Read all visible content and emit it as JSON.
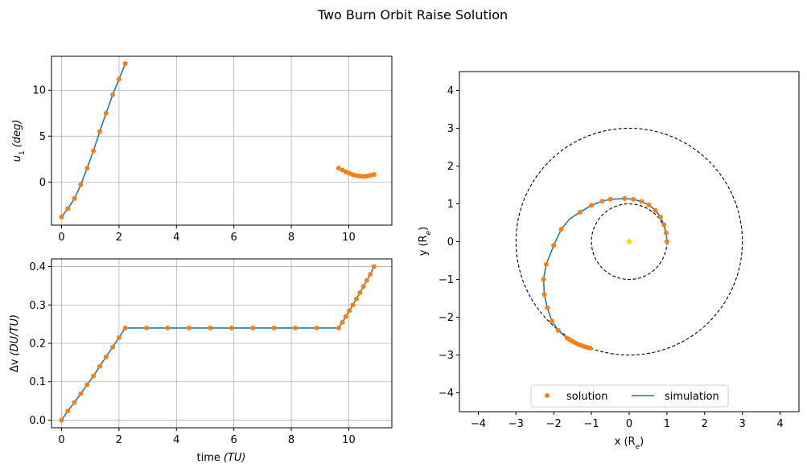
{
  "figure": {
    "title": "Two Burn Orbit Raise Solution"
  },
  "colors": {
    "solution": "#ff7f0e",
    "simulation": "#1f77b4",
    "orbit": "#000000",
    "star": "#ffd700",
    "grid": "#b0b0b0"
  },
  "chart_data": [
    {
      "type": "line",
      "panel": "control",
      "ylabel_main": "u",
      "ylabel_sub": "1",
      "ylabel_unit": "(deg)",
      "xlim": [
        -0.35,
        11.5
      ],
      "ylim": [
        -4.7,
        13.7
      ],
      "xticks": [
        0,
        2,
        4,
        6,
        8,
        10
      ],
      "xtick_labels": [
        "0",
        "2",
        "4",
        "6",
        "8",
        "10"
      ],
      "yticks": [
        0,
        5,
        10
      ],
      "ytick_labels": [
        "0",
        "5",
        "10"
      ],
      "grid": true,
      "series": [
        {
          "kind": "line",
          "segments": [
            [
              [
                0,
                -3.8
              ],
              [
                0.22,
                -2.9
              ],
              [
                0.45,
                -1.8
              ],
              [
                0.67,
                -0.3
              ],
              [
                0.89,
                1.5
              ],
              [
                1.11,
                3.4
              ],
              [
                1.33,
                5.5
              ],
              [
                1.55,
                7.5
              ],
              [
                1.78,
                9.5
              ],
              [
                2.0,
                11.2
              ],
              [
                2.22,
                12.9
              ]
            ],
            [
              [
                9.65,
                1.5
              ],
              [
                9.78,
                1.3
              ],
              [
                9.9,
                1.1
              ],
              [
                10.02,
                0.95
              ],
              [
                10.14,
                0.8
              ],
              [
                10.27,
                0.7
              ],
              [
                10.39,
                0.65
              ],
              [
                10.51,
                0.6
              ],
              [
                10.63,
                0.65
              ],
              [
                10.75,
                0.72
              ],
              [
                10.88,
                0.82
              ]
            ]
          ]
        },
        {
          "kind": "scatter",
          "points": [
            [
              0,
              -3.8
            ],
            [
              0.22,
              -2.9
            ],
            [
              0.45,
              -1.8
            ],
            [
              0.67,
              -0.3
            ],
            [
              0.89,
              1.5
            ],
            [
              1.11,
              3.4
            ],
            [
              1.33,
              5.5
            ],
            [
              1.55,
              7.5
            ],
            [
              1.78,
              9.5
            ],
            [
              2.0,
              11.2
            ],
            [
              2.22,
              12.9
            ],
            [
              9.65,
              1.5
            ],
            [
              9.78,
              1.3
            ],
            [
              9.9,
              1.1
            ],
            [
              10.02,
              0.95
            ],
            [
              10.14,
              0.8
            ],
            [
              10.27,
              0.7
            ],
            [
              10.39,
              0.65
            ],
            [
              10.51,
              0.6
            ],
            [
              10.63,
              0.65
            ],
            [
              10.75,
              0.72
            ],
            [
              10.88,
              0.82
            ]
          ]
        }
      ]
    },
    {
      "type": "line",
      "panel": "delta-v",
      "xlabel_main": "time",
      "xlabel_unit": "(TU)",
      "ylabel_main": "Δv",
      "ylabel_unit": "(DU/TU)",
      "xlim": [
        -0.35,
        11.5
      ],
      "ylim": [
        -0.02,
        0.42
      ],
      "xticks": [
        0,
        2,
        4,
        6,
        8,
        10
      ],
      "xtick_labels": [
        "0",
        "2",
        "4",
        "6",
        "8",
        "10"
      ],
      "yticks": [
        0.0,
        0.1,
        0.2,
        0.3,
        0.4
      ],
      "ytick_labels": [
        "0.0",
        "0.1",
        "0.2",
        "0.3",
        "0.4"
      ],
      "grid": true,
      "series": [
        {
          "kind": "line",
          "segments": [
            [
              [
                0,
                0.0
              ],
              [
                0.22,
                0.024
              ],
              [
                0.45,
                0.046
              ],
              [
                0.67,
                0.069
              ],
              [
                0.89,
                0.092
              ],
              [
                1.11,
                0.115
              ],
              [
                1.33,
                0.14
              ],
              [
                1.55,
                0.165
              ],
              [
                1.78,
                0.19
              ],
              [
                2.0,
                0.215
              ],
              [
                2.22,
                0.24
              ],
              [
                2.96,
                0.24
              ],
              [
                3.7,
                0.24
              ],
              [
                4.44,
                0.24
              ],
              [
                5.18,
                0.24
              ],
              [
                5.92,
                0.24
              ],
              [
                6.66,
                0.24
              ],
              [
                7.4,
                0.24
              ],
              [
                8.14,
                0.24
              ],
              [
                8.88,
                0.24
              ],
              [
                9.65,
                0.24
              ],
              [
                9.78,
                0.255
              ],
              [
                9.9,
                0.27
              ],
              [
                10.02,
                0.285
              ],
              [
                10.14,
                0.3
              ],
              [
                10.27,
                0.316
              ],
              [
                10.39,
                0.332
              ],
              [
                10.51,
                0.348
              ],
              [
                10.63,
                0.364
              ],
              [
                10.75,
                0.38
              ],
              [
                10.88,
                0.4
              ]
            ]
          ]
        },
        {
          "kind": "scatter",
          "points": [
            [
              0,
              0.0
            ],
            [
              0.22,
              0.024
            ],
            [
              0.45,
              0.046
            ],
            [
              0.67,
              0.069
            ],
            [
              0.89,
              0.092
            ],
            [
              1.11,
              0.115
            ],
            [
              1.33,
              0.14
            ],
            [
              1.55,
              0.165
            ],
            [
              1.78,
              0.19
            ],
            [
              2.0,
              0.215
            ],
            [
              2.22,
              0.24
            ],
            [
              2.96,
              0.24
            ],
            [
              3.7,
              0.24
            ],
            [
              4.44,
              0.24
            ],
            [
              5.18,
              0.24
            ],
            [
              5.92,
              0.24
            ],
            [
              6.66,
              0.24
            ],
            [
              7.4,
              0.24
            ],
            [
              8.14,
              0.24
            ],
            [
              8.88,
              0.24
            ],
            [
              9.65,
              0.24
            ],
            [
              9.78,
              0.255
            ],
            [
              9.9,
              0.27
            ],
            [
              10.02,
              0.285
            ],
            [
              10.14,
              0.3
            ],
            [
              10.27,
              0.316
            ],
            [
              10.39,
              0.332
            ],
            [
              10.51,
              0.348
            ],
            [
              10.63,
              0.364
            ],
            [
              10.75,
              0.38
            ],
            [
              10.88,
              0.4
            ]
          ]
        }
      ]
    },
    {
      "type": "line",
      "panel": "trajectory",
      "xlabel_main": "x",
      "xlabel_unit": "(R",
      "xlabel_sub": "e",
      "ylabel_main": "y",
      "ylabel_unit": "(R",
      "ylabel_sub": "e",
      "xlim": [
        -4.5,
        4.5
      ],
      "ylim": [
        -4.5,
        4.5
      ],
      "xticks": [
        -4,
        -3,
        -2,
        -1,
        0,
        1,
        2,
        3,
        4
      ],
      "xtick_labels": [
        "−4",
        "−3",
        "−2",
        "−1",
        "0",
        "1",
        "2",
        "3",
        "4"
      ],
      "yticks": [
        -4,
        -3,
        -2,
        -1,
        0,
        1,
        2,
        3,
        4
      ],
      "ytick_labels": [
        "−4",
        "−3",
        "−2",
        "−1",
        "0",
        "1",
        "2",
        "3",
        "4"
      ],
      "grid": false,
      "orbits": [
        1,
        3
      ],
      "center": [
        0,
        0
      ],
      "legend": {
        "placement": "lower-center",
        "entries": [
          "solution",
          "simulation"
        ]
      },
      "series": [
        {
          "name": "simulation",
          "kind": "line",
          "points": [
            [
              1.0,
              0.0
            ],
            [
              0.98,
              0.23
            ],
            [
              0.92,
              0.45
            ],
            [
              0.83,
              0.65
            ],
            [
              0.69,
              0.83
            ],
            [
              0.52,
              0.97
            ],
            [
              0.33,
              1.06
            ],
            [
              0.11,
              1.12
            ],
            [
              -0.12,
              1.14
            ],
            [
              -0.5,
              1.12
            ],
            [
              -0.72,
              1.07
            ],
            [
              -1.0,
              0.96
            ],
            [
              -1.3,
              0.78
            ],
            [
              -1.58,
              0.6
            ],
            [
              -1.8,
              0.33
            ],
            [
              -2.0,
              -0.1
            ],
            [
              -2.2,
              -0.6
            ],
            [
              -2.27,
              -1.0
            ],
            [
              -2.25,
              -1.4
            ],
            [
              -2.17,
              -1.75
            ],
            [
              -2.05,
              -2.1
            ],
            [
              -1.88,
              -2.35
            ],
            [
              -1.65,
              -2.55
            ],
            [
              -1.5,
              -2.64
            ],
            [
              -1.38,
              -2.7
            ],
            [
              -1.26,
              -2.75
            ],
            [
              -1.15,
              -2.79
            ],
            [
              -1.03,
              -2.82
            ]
          ]
        },
        {
          "name": "solution",
          "kind": "scatter",
          "points": [
            [
              1.0,
              0.0
            ],
            [
              0.98,
              0.23
            ],
            [
              0.92,
              0.45
            ],
            [
              0.83,
              0.65
            ],
            [
              0.69,
              0.83
            ],
            [
              0.52,
              0.97
            ],
            [
              0.33,
              1.06
            ],
            [
              0.11,
              1.12
            ],
            [
              -0.12,
              1.14
            ],
            [
              -0.5,
              1.12
            ],
            [
              -0.72,
              1.07
            ],
            [
              -1.0,
              0.96
            ],
            [
              -1.3,
              0.78
            ],
            [
              -1.8,
              0.33
            ],
            [
              -2.0,
              -0.1
            ],
            [
              -2.2,
              -0.6
            ],
            [
              -2.27,
              -1.0
            ],
            [
              -2.25,
              -1.4
            ],
            [
              -2.17,
              -1.75
            ],
            [
              -2.05,
              -2.1
            ],
            [
              -1.88,
              -2.35
            ],
            [
              -1.65,
              -2.55
            ],
            [
              -1.58,
              -2.59
            ],
            [
              -1.5,
              -2.64
            ],
            [
              -1.42,
              -2.68
            ],
            [
              -1.34,
              -2.72
            ],
            [
              -1.26,
              -2.75
            ],
            [
              -1.18,
              -2.78
            ],
            [
              -1.1,
              -2.8
            ],
            [
              -1.03,
              -2.82
            ]
          ]
        }
      ]
    }
  ]
}
